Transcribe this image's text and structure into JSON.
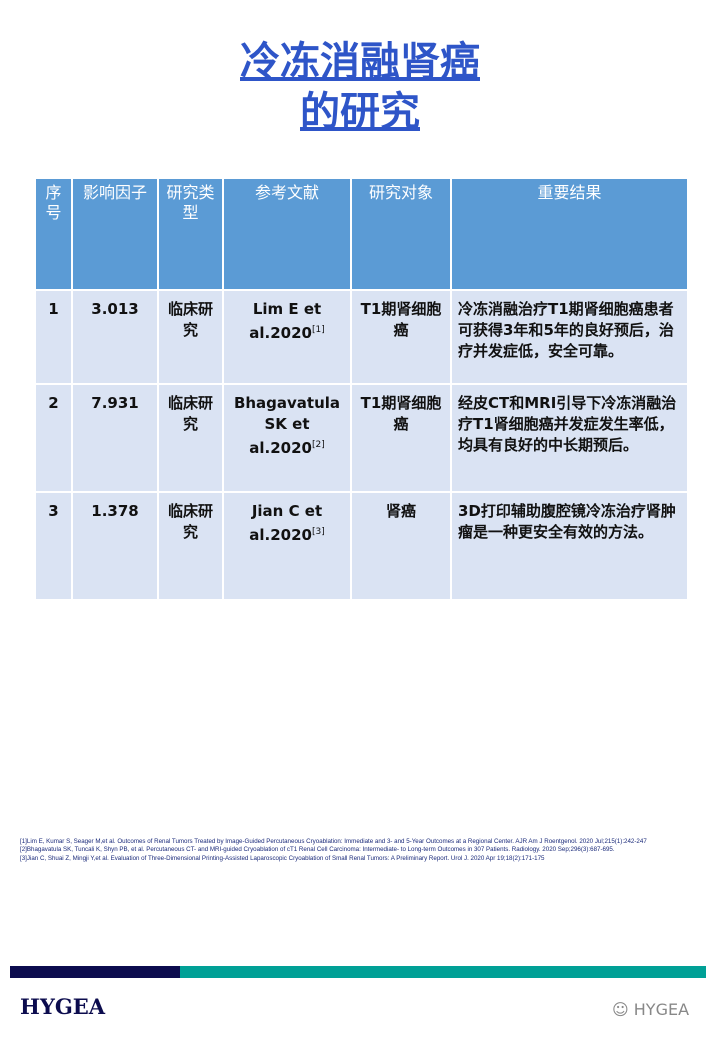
{
  "title": {
    "line1": "冷冻消融肾癌",
    "line2": "的研究"
  },
  "table": {
    "headers": [
      "序号",
      "影响因子",
      "研究类型",
      "参考文献",
      "研究对象",
      "重要结果"
    ],
    "rows": [
      {
        "no": "1",
        "if": "3.013",
        "type": "临床研究",
        "ref": "Lim E et al.2020",
        "ref_sup": "[1]",
        "subject": "T1期肾细胞癌",
        "result": "冷冻消融治疗T1期肾细胞癌患者可获得3年和5年的良好预后，治疗并发症低，安全可靠。"
      },
      {
        "no": "2",
        "if": "7.931",
        "type": "临床研究",
        "ref": "Bhagavatula SK et al.2020",
        "ref_sup": "[2]",
        "subject": "T1期肾细胞癌",
        "result": "经皮CT和MRI引导下冷冻消融治疗T1肾细胞癌并发症发生率低，均具有良好的中长期预后。"
      },
      {
        "no": "3",
        "if": "1.378",
        "type": "临床研究",
        "ref": "Jian C et al.2020",
        "ref_sup": "[3]",
        "subject": "肾癌",
        "result": "3D打印辅助腹腔镜冷冻治疗肾肿瘤是一种更安全有效的方法。"
      }
    ]
  },
  "references": [
    "[1]Lim E, Kumar S, Seager M,et al. Outcomes of Renal Tumors Treated by Image-Guided Percutaneous Cryoablation: Immediate and 3- and 5-Year Outcomes at a Regional Center. AJR Am J Roentgenol. 2020 Jul;215(1):242-247",
    "[2]Bhagavatula SK, Tuncali K, Shyn PB, et al. Percutaneous CT- and MRI-guided Cryoablation of cT1 Renal Cell Carcinoma: Intermediate- to Long-term Outcomes in 307 Patients. Radiology. 2020 Sep;296(3):687-695.",
    "[3]Jian C, Shuai Z, Mingji Y,et al. Evaluation of Three-Dimensional Printing-Assisted Laparoscopic Cryoablation of Small Renal Tumors: A Preliminary Report. Urol J. 2020 Apr 19;18(2):171-175"
  ],
  "footer": {
    "logo": "HYGEA",
    "watermark": "HYGEA",
    "colors": {
      "navy": "#0c0c4e",
      "teal": "#00a096"
    }
  }
}
